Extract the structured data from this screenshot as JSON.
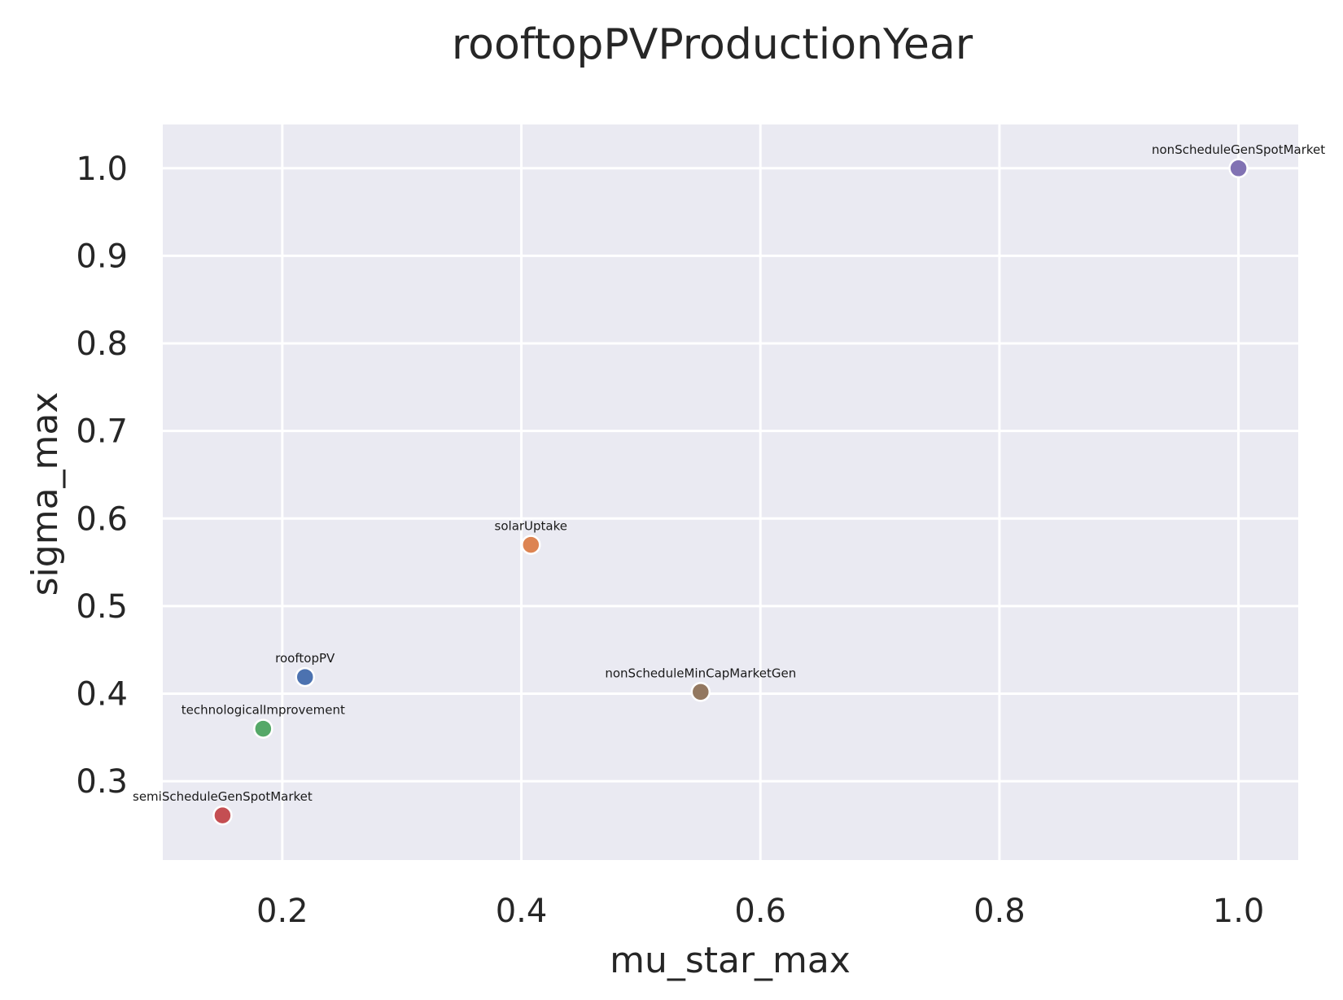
{
  "chart_data": {
    "type": "scatter",
    "title": "rooftopPVProductionYear",
    "xlabel": "mu_star_max",
    "ylabel": "sigma_max",
    "xlim": [
      0.1,
      1.05
    ],
    "ylim": [
      0.21,
      1.05
    ],
    "xticks": [
      "0.2",
      "0.4",
      "0.6",
      "0.8",
      "1.0"
    ],
    "yticks": [
      "0.3",
      "0.4",
      "0.5",
      "0.6",
      "0.7",
      "0.8",
      "0.9",
      "1.0"
    ],
    "grid": true,
    "background": "#eaeaf2",
    "points": [
      {
        "label": "rooftopPV",
        "x": 0.219,
        "y": 0.419,
        "color": "#4c72b0"
      },
      {
        "label": "solarUptake",
        "x": 0.408,
        "y": 0.57,
        "color": "#dd8452"
      },
      {
        "label": "technologicalImprovement",
        "x": 0.184,
        "y": 0.36,
        "color": "#55a868"
      },
      {
        "label": "semiScheduleGenSpotMarket",
        "x": 0.15,
        "y": 0.261,
        "color": "#c44e52"
      },
      {
        "label": "nonScheduleGenSpotMarket",
        "x": 1.0,
        "y": 1.0,
        "color": "#8172b3"
      },
      {
        "label": "nonScheduleMinCapMarketGen",
        "x": 0.55,
        "y": 0.402,
        "color": "#937860"
      }
    ]
  }
}
